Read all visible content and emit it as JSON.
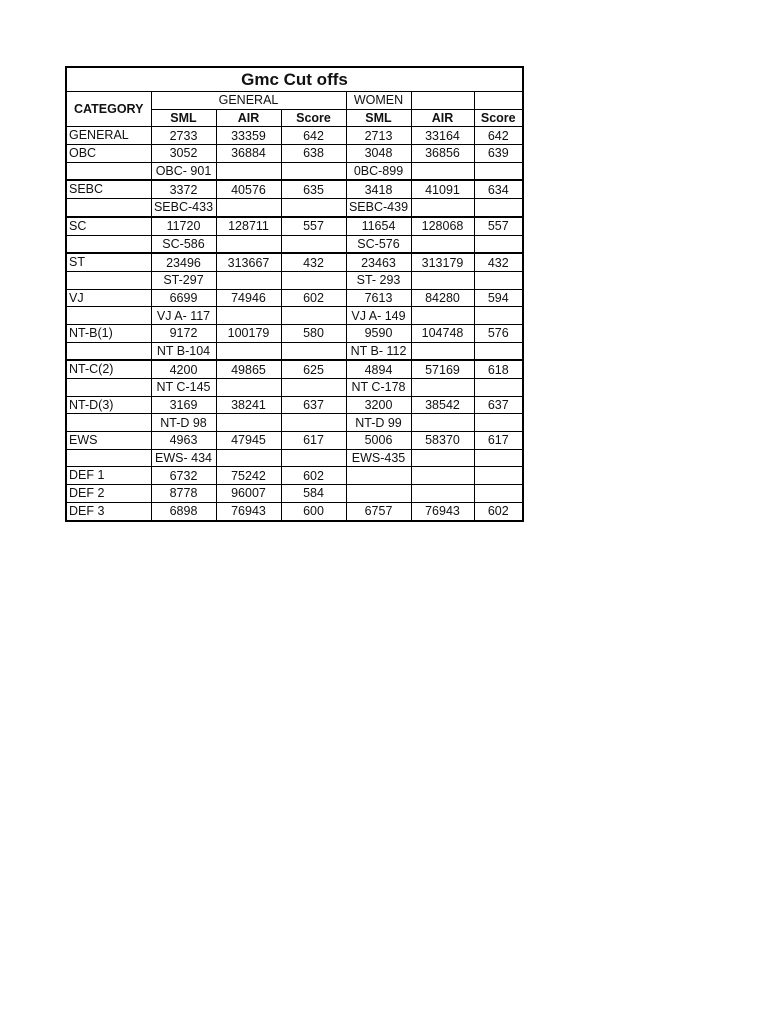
{
  "title": "Gmc Cut offs",
  "header": {
    "category": "CATEGORY",
    "group_general": "GENERAL",
    "group_women": "WOMEN",
    "columns": [
      "SML",
      "AIR",
      "Score",
      "SML",
      "AIR",
      "Score"
    ]
  },
  "rows": [
    [
      "GENERAL",
      "2733",
      "33359",
      "642",
      "2713",
      "33164",
      "642"
    ],
    [
      "OBC",
      "3052",
      "36884",
      "638",
      "3048",
      "36856",
      "639"
    ],
    [
      "",
      "OBC- 901",
      "",
      "",
      "0BC-899",
      "",
      ""
    ],
    [
      "SEBC",
      "3372",
      "40576",
      "635",
      "3418",
      "41091",
      "634"
    ],
    [
      "",
      "SEBC-433",
      "",
      "",
      "SEBC-439",
      "",
      ""
    ],
    [
      "SC",
      "11720",
      "128711",
      "557",
      "11654",
      "128068",
      "557"
    ],
    [
      "",
      "SC-586",
      "",
      "",
      "SC-576",
      "",
      ""
    ],
    [
      "ST",
      "23496",
      "313667",
      "432",
      "23463",
      "313179",
      "432"
    ],
    [
      "",
      "ST-297",
      "",
      "",
      "ST- 293",
      "",
      ""
    ],
    [
      "VJ",
      "6699",
      "74946",
      "602",
      "7613",
      "84280",
      "594"
    ],
    [
      "",
      "VJ A- 117",
      "",
      "",
      "VJ A- 149",
      "",
      ""
    ],
    [
      "NT-B(1)",
      "9172",
      "100179",
      "580",
      "9590",
      "104748",
      "576"
    ],
    [
      "",
      "NT B-104",
      "",
      "",
      "NT B- 112",
      "",
      ""
    ],
    [
      "NT-C(2)",
      "4200",
      "49865",
      "625",
      "4894",
      "57169",
      "618"
    ],
    [
      "",
      "NT C-145",
      "",
      "",
      "NT C-178",
      "",
      ""
    ],
    [
      "NT-D(3)",
      "3169",
      "38241",
      "637",
      "3200",
      "38542",
      "637"
    ],
    [
      "",
      "NT-D 98",
      "",
      "",
      "NT-D 99",
      "",
      ""
    ],
    [
      "EWS",
      "4963",
      "47945",
      "617",
      "5006",
      "58370",
      "617"
    ],
    [
      "",
      "EWS- 434",
      "",
      "",
      "EWS-435",
      "",
      ""
    ],
    [
      "DEF 1",
      "6732",
      "75242",
      "602",
      "",
      "",
      ""
    ],
    [
      "DEF 2",
      "8778",
      "96007",
      "584",
      "",
      "",
      ""
    ],
    [
      "DEF 3",
      "6898",
      "76943",
      "600",
      "6757",
      "76943",
      "602"
    ]
  ]
}
